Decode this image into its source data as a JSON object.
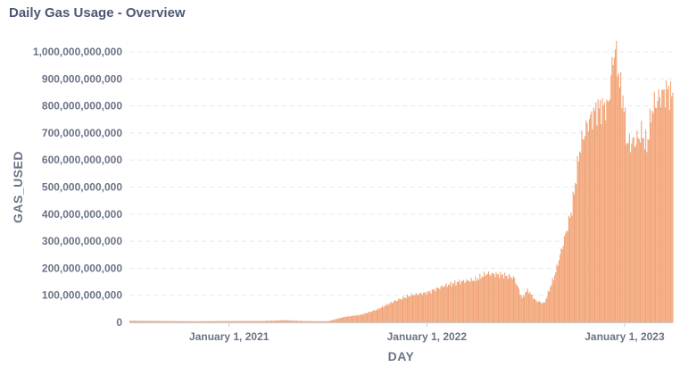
{
  "card": {
    "title": "Daily Gas Usage - Overview"
  },
  "colors": {
    "bar": "#f2a477",
    "grid": "#e6e8ec",
    "axis": "#6b7386",
    "title": "#4c5773"
  },
  "chart_data": {
    "type": "bar",
    "title": "Daily Gas Usage - Overview",
    "xlabel": "DAY",
    "ylabel": "GAS_USED",
    "ylim": [
      0,
      1000000000000
    ],
    "y_ticks": [
      "0",
      "100,000,000,000",
      "200,000,000,000",
      "300,000,000,000",
      "400,000,000,000",
      "500,000,000,000",
      "600,000,000,000",
      "700,000,000,000",
      "800,000,000,000",
      "900,000,000,000",
      "1,000,000,000,000"
    ],
    "y_tick_values": [
      0,
      100000000000,
      200000000000,
      300000000000,
      400000000000,
      500000000000,
      600000000000,
      700000000000,
      800000000000,
      900000000000,
      1000000000000
    ],
    "x_ticks": [
      {
        "label": "January 1, 2021",
        "date": "2021-01-01"
      },
      {
        "label": "January 1, 2022",
        "date": "2022-01-01"
      },
      {
        "label": "January 1, 2023",
        "date": "2023-01-01"
      }
    ],
    "x_range": [
      "2020-07-01",
      "2023-03-31"
    ],
    "grid": true,
    "series": [
      {
        "values": [
          [
            "2020-07-01",
            6000000000
          ],
          [
            "2020-09-01",
            5000000000
          ],
          [
            "2020-11-01",
            4000000000
          ],
          [
            "2021-01-01",
            5000000000
          ],
          [
            "2021-03-01",
            5000000000
          ],
          [
            "2021-04-15",
            8000000000
          ],
          [
            "2021-05-15",
            5000000000
          ],
          [
            "2021-07-01",
            4000000000
          ],
          [
            "2021-08-01",
            20000000000
          ],
          [
            "2021-09-01",
            28000000000
          ],
          [
            "2021-10-01",
            48000000000
          ],
          [
            "2021-11-01",
            78000000000
          ],
          [
            "2021-12-01",
            100000000000
          ],
          [
            "2022-01-01",
            110000000000
          ],
          [
            "2022-02-01",
            135000000000
          ],
          [
            "2022-03-01",
            150000000000
          ],
          [
            "2022-04-01",
            158000000000
          ],
          [
            "2022-04-20",
            180000000000
          ],
          [
            "2022-05-20",
            175000000000
          ],
          [
            "2022-06-10",
            165000000000
          ],
          [
            "2022-06-25",
            90000000000
          ],
          [
            "2022-07-05",
            120000000000
          ],
          [
            "2022-07-20",
            80000000000
          ],
          [
            "2022-08-05",
            70000000000
          ],
          [
            "2022-08-25",
            180000000000
          ],
          [
            "2022-09-10",
            300000000000
          ],
          [
            "2022-09-25",
            420000000000
          ],
          [
            "2022-10-10",
            650000000000
          ],
          [
            "2022-10-25",
            740000000000
          ],
          [
            "2022-11-10",
            790000000000
          ],
          [
            "2022-12-01",
            800000000000
          ],
          [
            "2022-12-10",
            980000000000
          ],
          [
            "2022-12-15",
            1020000000000
          ],
          [
            "2022-12-22",
            880000000000
          ],
          [
            "2022-12-28",
            830000000000
          ],
          [
            "2023-01-05",
            660000000000
          ],
          [
            "2023-01-20",
            670000000000
          ],
          [
            "2023-02-01",
            700000000000
          ],
          [
            "2023-02-10",
            650000000000
          ],
          [
            "2023-02-20",
            790000000000
          ],
          [
            "2023-03-05",
            830000000000
          ],
          [
            "2023-03-20",
            860000000000
          ],
          [
            "2023-03-31",
            830000000000
          ]
        ]
      }
    ]
  }
}
